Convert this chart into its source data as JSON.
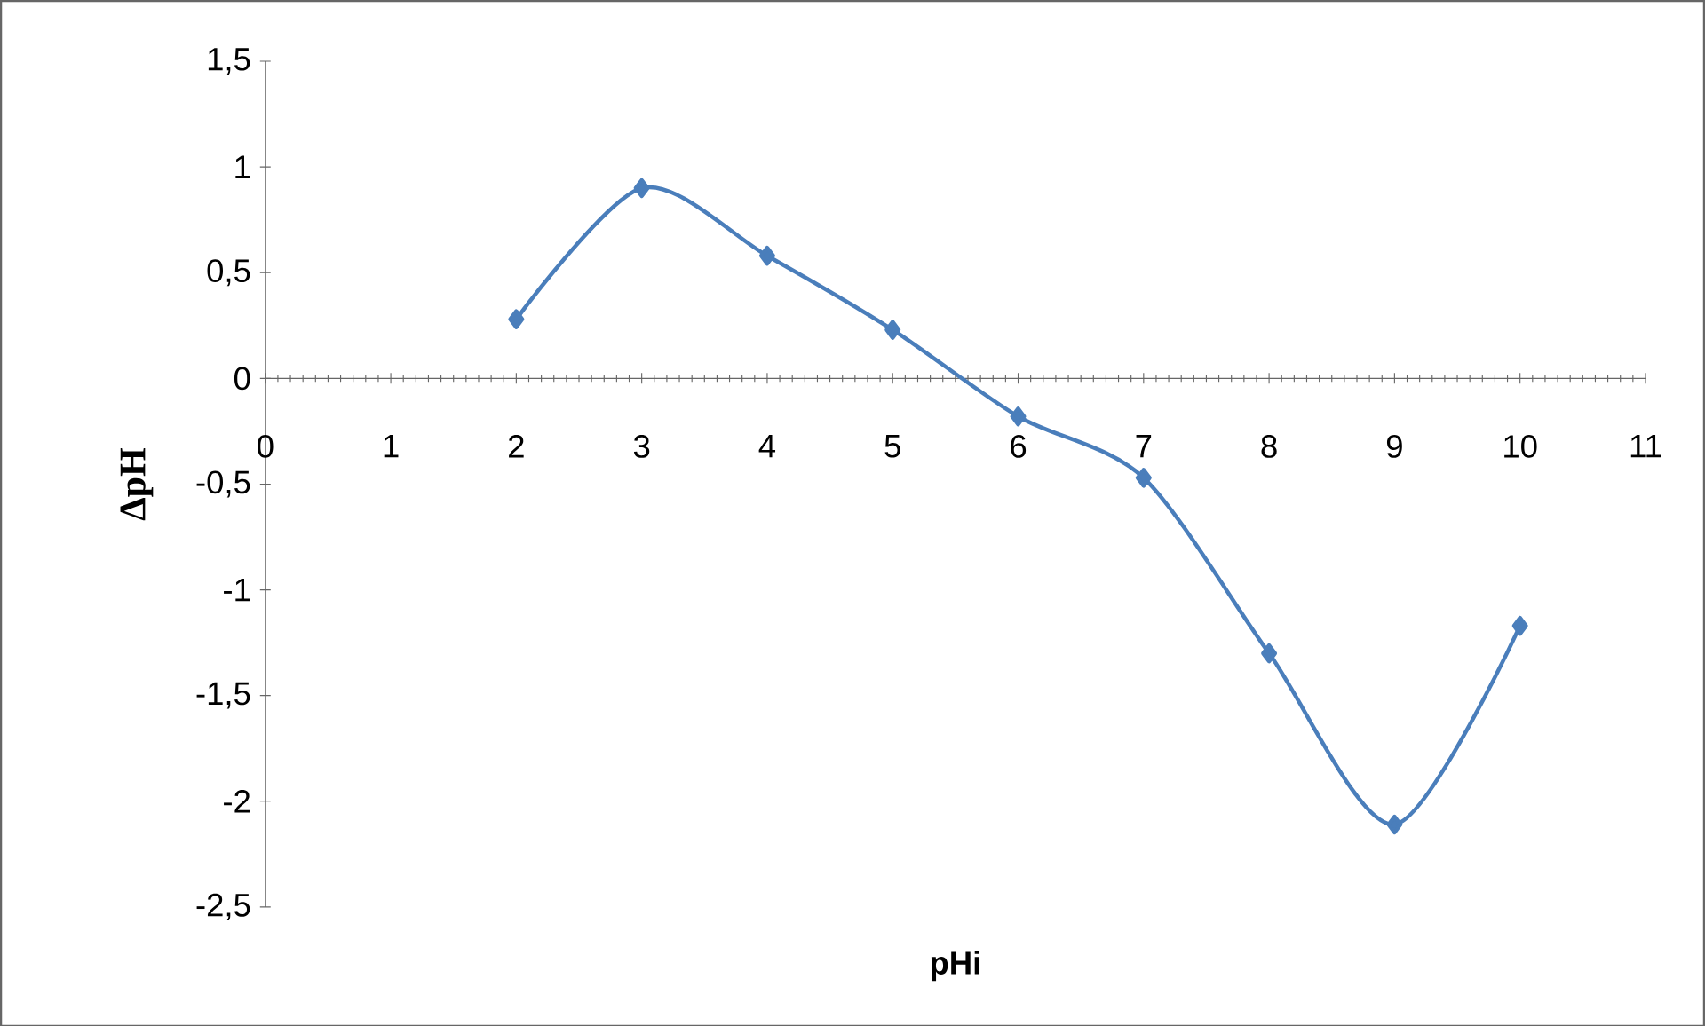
{
  "chart_data": {
    "type": "line",
    "xlabel": "pHi",
    "ylabel": "ΔpH",
    "x": [
      2,
      3,
      4,
      5,
      6,
      7,
      8,
      9,
      10
    ],
    "series": [
      {
        "color": "#4a7ebb",
        "values": [
          0.28,
          0.9,
          0.58,
          0.23,
          -0.18,
          -0.47,
          -1.3,
          -2.11,
          -1.17
        ]
      }
    ],
    "xlim": [
      0,
      11
    ],
    "xticks": [
      0,
      1,
      2,
      3,
      4,
      5,
      6,
      7,
      8,
      9,
      10,
      11
    ],
    "ylim": [
      -2.5,
      1.5
    ],
    "yticks": [
      {
        "value": -2.5,
        "label": "-2,5"
      },
      -2,
      {
        "value": -1.5,
        "label": "-1,5"
      },
      -1,
      {
        "value": -0.5,
        "label": "-0,5"
      },
      0,
      {
        "value": 0.5,
        "label": "0,5"
      },
      1,
      {
        "value": 1.5,
        "label": "1,5"
      }
    ],
    "marker": "diamond",
    "grid": false
  }
}
